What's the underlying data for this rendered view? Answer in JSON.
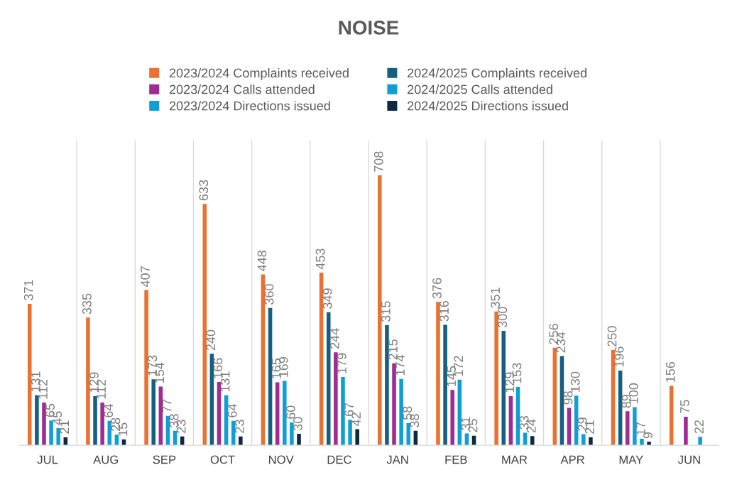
{
  "chart_data": {
    "type": "bar",
    "title": "NOISE",
    "categories": [
      "JUL",
      "AUG",
      "SEP",
      "OCT",
      "NOV",
      "DEC",
      "JAN",
      "FEB",
      "MAR",
      "APR",
      "MAY",
      "JUN"
    ],
    "series": [
      {
        "name": "2023/2024 Complaints received",
        "color": "#e97132",
        "values": [
          371,
          335,
          407,
          633,
          448,
          453,
          708,
          376,
          351,
          256,
          250,
          156
        ]
      },
      {
        "name": "2024/2025 Complaints received",
        "color": "#156082",
        "values": [
          131,
          129,
          173,
          240,
          360,
          349,
          315,
          316,
          300,
          234,
          196,
          null
        ]
      },
      {
        "name": "2023/2024 Calls attended",
        "color": "#a02b93",
        "values": [
          112,
          112,
          154,
          166,
          165,
          244,
          215,
          145,
          129,
          98,
          89,
          75
        ]
      },
      {
        "name": "2024/2025 Calls attended",
        "color": "#0f9ed5",
        "values": [
          65,
          64,
          77,
          131,
          169,
          179,
          174,
          172,
          153,
          130,
          100,
          null
        ]
      },
      {
        "name": "2023/2024 Directions issued",
        "color": "#0f9ed5",
        "values": [
          45,
          28,
          38,
          64,
          60,
          67,
          58,
          31,
          33,
          29,
          17,
          22
        ]
      },
      {
        "name": "2024/2025 Directions issued",
        "color": "#0e2841",
        "values": [
          21,
          15,
          23,
          23,
          30,
          42,
          38,
          25,
          24,
          21,
          9,
          null
        ]
      }
    ],
    "data_labels": true,
    "grid": "x",
    "legend": "top"
  }
}
